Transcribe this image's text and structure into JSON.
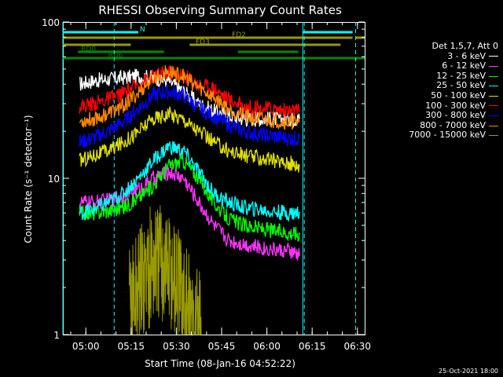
{
  "chart_data": {
    "type": "line",
    "title": "RHESSI Observing Summary Count Rates",
    "xlabel": "Start Time (08-Jan-16 04:52:22)",
    "ylabel": "Count Rate (s⁻¹ detector⁻¹)",
    "yscale": "log",
    "ylim": [
      1,
      100
    ],
    "xlim_minutes_from_start": [
      0,
      100
    ],
    "x_ticks": [
      {
        "label": "05:00",
        "min": 7.6
      },
      {
        "label": "05:15",
        "min": 22.6
      },
      {
        "label": "05:30",
        "min": 37.6
      },
      {
        "label": "05:45",
        "min": 52.6
      },
      {
        "label": "06:00",
        "min": 67.6
      },
      {
        "label": "06:15",
        "min": 82.6
      },
      {
        "label": "06:30",
        "min": 97.6
      }
    ],
    "y_ticks": [
      {
        "label": "1",
        "v": 1
      },
      {
        "label": "10",
        "v": 10
      },
      {
        "label": "100",
        "v": 100
      }
    ],
    "legend_title": "Det 1,5,7, Att 0",
    "series": [
      {
        "name": "3 - 6 keV",
        "color": "#ffffff",
        "x": [
          5.5,
          10,
          15,
          20,
          25,
          30,
          35,
          40,
          45,
          50,
          55,
          60,
          65,
          70,
          75,
          78.5
        ],
        "y": [
          40,
          42,
          43,
          44,
          45,
          44,
          42,
          36,
          30,
          27,
          25,
          24,
          24,
          24,
          24,
          24
        ]
      },
      {
        "name": "6 - 12 keV",
        "color": "#ff33ff",
        "x": [
          5.5,
          10,
          15,
          20,
          25,
          30,
          35,
          40,
          45,
          50,
          55,
          60,
          65,
          70,
          75,
          78.5
        ],
        "y": [
          7,
          7,
          7.2,
          7.8,
          8.5,
          10,
          11,
          10,
          7,
          5,
          4,
          3.8,
          3.6,
          3.5,
          3.4,
          3.2
        ]
      },
      {
        "name": "12 - 25 keV",
        "color": "#00ff00",
        "x": [
          5.5,
          10,
          15,
          20,
          25,
          30,
          35,
          40,
          45,
          50,
          55,
          60,
          65,
          70,
          75,
          78.5
        ],
        "y": [
          6,
          6,
          6.2,
          6.5,
          7.5,
          9,
          12,
          13,
          10,
          7,
          5.5,
          5,
          4.8,
          4.6,
          4.5,
          4.4
        ]
      },
      {
        "name": "25 - 50 keV",
        "color": "#00ffff",
        "x": [
          5.5,
          10,
          15,
          20,
          25,
          30,
          35,
          40,
          45,
          50,
          55,
          60,
          65,
          70,
          75,
          78.5
        ],
        "y": [
          6,
          6.3,
          7,
          8,
          10,
          13,
          16,
          15,
          11,
          8,
          7,
          6.5,
          6.3,
          6.1,
          6,
          6
        ]
      },
      {
        "name": "50 - 100 keV",
        "color": "#e0e000",
        "x": [
          5.5,
          10,
          15,
          20,
          25,
          30,
          35,
          40,
          45,
          50,
          55,
          60,
          65,
          70,
          75,
          78.5
        ],
        "y": [
          13,
          14,
          15,
          17,
          20,
          24,
          26,
          24,
          20,
          17,
          15,
          14,
          13.5,
          13,
          12.5,
          12
        ]
      },
      {
        "name": "100 - 300 keV",
        "color": "#ff0000",
        "x": [
          5.5,
          10,
          15,
          20,
          25,
          30,
          35,
          40,
          45,
          50,
          55,
          60,
          65,
          70,
          75,
          78.5
        ],
        "y": [
          29,
          30,
          32,
          35,
          40,
          45,
          48,
          46,
          40,
          38,
          32,
          29,
          28,
          28,
          27,
          27
        ]
      },
      {
        "name": "300 - 800 keV",
        "color": "#0000ff",
        "x": [
          5.5,
          10,
          15,
          20,
          25,
          30,
          35,
          40,
          45,
          50,
          55,
          60,
          65,
          70,
          75,
          78.5
        ],
        "y": [
          17,
          18,
          20,
          23,
          28,
          34,
          36,
          34,
          28,
          25,
          22,
          20,
          19,
          18.5,
          18,
          18
        ]
      },
      {
        "name": "800 - 7000 keV",
        "color": "#ff8800",
        "x": [
          5.5,
          10,
          15,
          20,
          25,
          30,
          35,
          40,
          45,
          50,
          55,
          60,
          65,
          70,
          75,
          78.5
        ],
        "y": [
          23,
          24,
          26,
          29,
          35,
          44,
          48,
          45,
          38,
          33,
          28,
          25,
          24,
          23.5,
          23,
          23
        ]
      },
      {
        "name": "7000 - 15000 keV",
        "color": "#999900",
        "x": [
          22,
          24,
          26,
          28,
          30,
          32,
          34,
          36,
          38,
          40,
          42,
          44,
          46
        ],
        "y": [
          1.5,
          1.8,
          2.2,
          2.6,
          2.8,
          2.9,
          2.8,
          2.5,
          2.0,
          1.6,
          1.3,
          1.1,
          1.0
        ]
      }
    ],
    "flags": [
      {
        "name": "N",
        "color": "#00ffff",
        "segments_min": [
          [
            0,
            25
          ],
          [
            79.5,
            96
          ]
        ]
      },
      {
        "name": "FD2",
        "color": "#999900",
        "segments_min": [
          [
            0,
            96
          ],
          [
            97,
            100
          ]
        ]
      },
      {
        "name": "FD3",
        "color": "#999900",
        "segments_min": [
          [
            0,
            22.5
          ],
          [
            42,
            92
          ]
        ]
      },
      {
        "name": "RD0",
        "color": "#008800",
        "segments_min": [
          [
            5,
            33.5
          ],
          [
            58,
            78
          ]
        ]
      },
      {
        "name": "RD6",
        "color": "#008800",
        "segments_min": [
          [
            0,
            33.5
          ],
          [
            33.5,
            57
          ],
          [
            57,
            79.5
          ],
          [
            79.5,
            100
          ]
        ]
      }
    ],
    "markers_min": [
      {
        "color": "#00ffff",
        "style": "solid",
        "min": [
          0,
          79.5
        ]
      },
      {
        "color": "#00ffff",
        "style": "dashed",
        "min": [
          17,
          80,
          97
        ]
      }
    ]
  },
  "footer_date": "25-Oct-2021 18:00"
}
